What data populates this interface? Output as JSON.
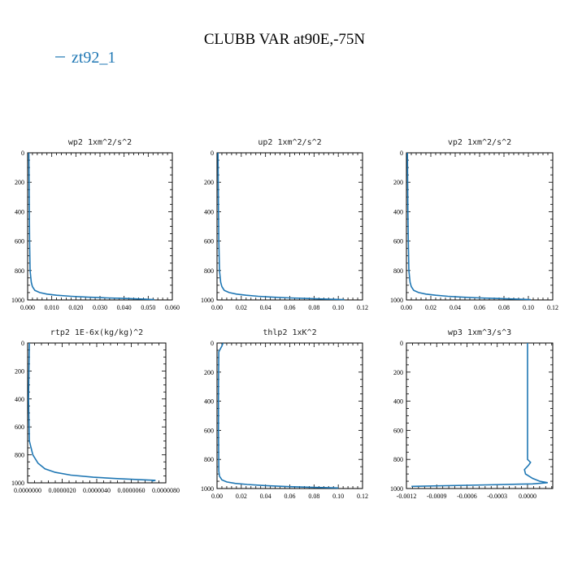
{
  "title": "CLUBB VAR at90E,-75N",
  "legend": {
    "label": "zt92_1",
    "color": "#1f77b4"
  },
  "chart_data": [
    {
      "type": "line",
      "title": "wp2   1xm^2/s^2",
      "xlim": [
        0,
        0.06
      ],
      "ylim": [
        1000,
        0
      ],
      "xticks": [
        "0.000",
        "0.010",
        "0.020",
        "0.030",
        "0.040",
        "0.050",
        "0.060"
      ],
      "yticks": [
        "0",
        "200",
        "400",
        "600",
        "800",
        "1000"
      ],
      "series": [
        {
          "name": "zt92_1",
          "x": [
            0.0005,
            0.0006,
            0.0007,
            0.0008,
            0.001,
            0.0015,
            0.002,
            0.003,
            0.005,
            0.008,
            0.012,
            0.018,
            0.025,
            0.033,
            0.041,
            0.048,
            0.0525
          ],
          "y": [
            0,
            200,
            400,
            600,
            800,
            880,
            910,
            935,
            950,
            960,
            968,
            975,
            981,
            986,
            990,
            994,
            997
          ]
        }
      ]
    },
    {
      "type": "line",
      "title": "up2   1xm^2/s^2",
      "xlim": [
        0,
        0.12
      ],
      "ylim": [
        1000,
        0
      ],
      "xticks": [
        "0.00",
        "0.02",
        "0.04",
        "0.06",
        "0.08",
        "0.10",
        "0.12"
      ],
      "yticks": [
        "0",
        "200",
        "400",
        "600",
        "800",
        "1000"
      ],
      "series": [
        {
          "name": "zt92_1",
          "x": [
            0.0008,
            0.001,
            0.0012,
            0.0015,
            0.002,
            0.003,
            0.004,
            0.006,
            0.01,
            0.016,
            0.024,
            0.034,
            0.046,
            0.06,
            0.075,
            0.09,
            0.105
          ],
          "y": [
            0,
            200,
            400,
            600,
            800,
            880,
            910,
            935,
            950,
            960,
            968,
            975,
            981,
            986,
            990,
            994,
            997
          ]
        }
      ]
    },
    {
      "type": "line",
      "title": "vp2   1xm^2/s^2",
      "xlim": [
        0,
        0.12
      ],
      "ylim": [
        1000,
        0
      ],
      "xticks": [
        "0.00",
        "0.02",
        "0.04",
        "0.06",
        "0.08",
        "0.10",
        "0.12"
      ],
      "yticks": [
        "0",
        "200",
        "400",
        "600",
        "800",
        "1000"
      ],
      "series": [
        {
          "name": "zt92_1",
          "x": [
            0.0008,
            0.001,
            0.0012,
            0.0015,
            0.002,
            0.003,
            0.004,
            0.006,
            0.01,
            0.016,
            0.024,
            0.034,
            0.046,
            0.06,
            0.075,
            0.09,
            0.102
          ],
          "y": [
            0,
            200,
            400,
            600,
            800,
            880,
            910,
            935,
            950,
            960,
            968,
            975,
            981,
            986,
            990,
            994,
            997
          ]
        }
      ]
    },
    {
      "type": "line",
      "title": "rtp2   1E-6x(kg/kg)^2",
      "xlim": [
        0,
        8e-06
      ],
      "ylim": [
        1000,
        0
      ],
      "xticks": [
        "0.0000000",
        "0.0000020",
        "0.0000040",
        "0.0000060",
        "0.0000080"
      ],
      "yticks": [
        "0",
        "200",
        "400",
        "600",
        "800",
        "1000"
      ],
      "series": [
        {
          "name": "zt92_1",
          "x": [
            1e-07,
            5e-08,
            1e-07,
            3e-07,
            6e-07,
            1e-06,
            1.6e-06,
            2.5e-06,
            3.8e-06,
            5.2e-06,
            6.6e-06,
            7.4e-06,
            7.2e-06
          ],
          "y": [
            0,
            400,
            700,
            800,
            860,
            900,
            925,
            945,
            960,
            970,
            978,
            982,
            988
          ]
        }
      ]
    },
    {
      "type": "line",
      "title": "thlp2   1xK^2",
      "xlim": [
        0,
        0.12
      ],
      "ylim": [
        1000,
        0
      ],
      "xticks": [
        "0.00",
        "0.02",
        "0.04",
        "0.06",
        "0.08",
        "0.10",
        "0.12"
      ],
      "yticks": [
        "0",
        "200",
        "400",
        "600",
        "800",
        "1000"
      ],
      "series": [
        {
          "name": "zt92_1",
          "x": [
            0.005,
            0.004,
            0.0015,
            0.0012,
            0.0012,
            0.0015,
            0.002,
            0.004,
            0.008,
            0.015,
            0.025,
            0.04,
            0.06,
            0.08,
            0.1
          ],
          "y": [
            0,
            20,
            60,
            300,
            600,
            880,
            915,
            940,
            955,
            965,
            972,
            980,
            987,
            992,
            996
          ]
        }
      ]
    },
    {
      "type": "line",
      "title": "wp3   1xm^3/s^3",
      "xlim": [
        -0.0012,
        0.00025
      ],
      "ylim": [
        1000,
        0
      ],
      "xticks": [
        "-0.0012",
        "-0.0009",
        "-0.0006",
        "-0.0003",
        "0.0000"
      ],
      "xtick_values": [
        -0.0012,
        -0.0009,
        -0.0006,
        -0.0003,
        0
      ],
      "yticks": [
        "0",
        "200",
        "400",
        "600",
        "800",
        "1000"
      ],
      "series": [
        {
          "name": "zt92_1",
          "x": [
            0.0,
            0.0,
            0.0,
            3e-05,
            1e-05,
            -3e-05,
            -2e-05,
            5e-05,
            0.00012,
            0.0002,
            5e-05,
            -0.0004,
            -0.00115
          ],
          "y": [
            0,
            400,
            800,
            820,
            840,
            870,
            900,
            930,
            950,
            960,
            968,
            975,
            985
          ]
        }
      ]
    }
  ]
}
